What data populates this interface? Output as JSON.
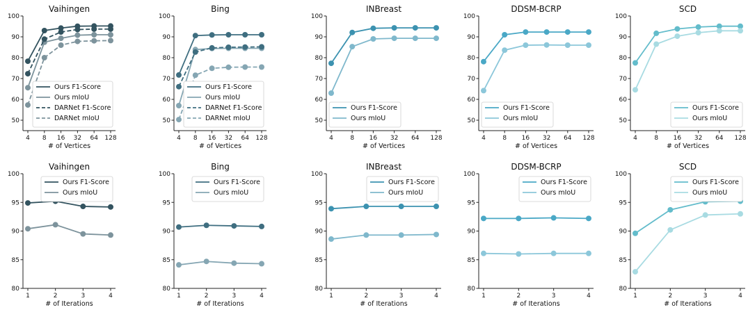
{
  "chart_data": [
    {
      "id": "v-top",
      "type": "line",
      "title": "Vaihingen",
      "xlabel": "# of Vertices",
      "x": [
        "4",
        "8",
        "16",
        "32",
        "64",
        "128"
      ],
      "ylim": [
        45,
        100
      ],
      "yticks": [
        50,
        60,
        70,
        80,
        90,
        100
      ],
      "legend": "lower-right",
      "series": [
        {
          "name": "Ours F1-Score",
          "values": [
            78.3,
            93.0,
            94.2,
            95.1,
            95.2,
            95.2
          ],
          "color": "#33535f",
          "dash": false
        },
        {
          "name": "Ours mIoU",
          "values": [
            65.6,
            87.4,
            89.3,
            90.8,
            91.0,
            91.0
          ],
          "color": "#7d939c",
          "dash": false
        },
        {
          "name": "DARNet F1-Score",
          "values": [
            72.3,
            88.9,
            92.3,
            93.5,
            93.7,
            93.7
          ],
          "color": "#33535f",
          "dash": true
        },
        {
          "name": "DARNet mIoU",
          "values": [
            57.3,
            80.0,
            86.0,
            87.8,
            88.1,
            88.2
          ],
          "color": "#7d939c",
          "dash": true
        }
      ]
    },
    {
      "id": "b-top",
      "type": "line",
      "title": "Bing",
      "xlabel": "# of Vertices",
      "x": [
        "4",
        "8",
        "16",
        "32",
        "64",
        "128"
      ],
      "ylim": [
        45,
        100
      ],
      "yticks": [
        50,
        60,
        70,
        80,
        90,
        100
      ],
      "legend": "lower-right",
      "series": [
        {
          "name": "Ours F1-Score",
          "values": [
            71.7,
            90.6,
            90.9,
            91.0,
            91.0,
            91.0
          ],
          "color": "#3f6e80",
          "dash": false
        },
        {
          "name": "Ours mIoU",
          "values": [
            57.0,
            83.9,
            84.4,
            84.5,
            84.5,
            84.5
          ],
          "color": "#85a6b3",
          "dash": false
        },
        {
          "name": "DARNet F1-Score",
          "values": [
            66.1,
            82.7,
            84.7,
            85.0,
            85.1,
            85.2
          ],
          "color": "#3f6e80",
          "dash": true
        },
        {
          "name": "DARNet mIoU",
          "values": [
            50.3,
            71.6,
            74.9,
            75.4,
            75.5,
            75.5
          ],
          "color": "#85a6b3",
          "dash": true
        }
      ]
    },
    {
      "id": "i-top",
      "type": "line",
      "title": "INBreast",
      "xlabel": "# of Vertices",
      "x": [
        "4",
        "8",
        "16",
        "32",
        "64",
        "128"
      ],
      "ylim": [
        45,
        100
      ],
      "yticks": [
        50,
        60,
        70,
        80,
        90,
        100
      ],
      "legend": "lower-left",
      "series": [
        {
          "name": "Ours F1-Score",
          "values": [
            77.3,
            92.1,
            94.1,
            94.3,
            94.3,
            94.3
          ],
          "color": "#3c92b0",
          "dash": false
        },
        {
          "name": "Ours mIoU",
          "values": [
            63.0,
            85.3,
            89.0,
            89.3,
            89.3,
            89.3
          ],
          "color": "#7fb8cc",
          "dash": false
        }
      ]
    },
    {
      "id": "d-top",
      "type": "line",
      "title": "DDSM-BCRP",
      "xlabel": "# of Vertices",
      "x": [
        "4",
        "8",
        "16",
        "32",
        "64",
        "128"
      ],
      "ylim": [
        45,
        100
      ],
      "yticks": [
        50,
        60,
        70,
        80,
        90,
        100
      ],
      "legend": "lower-left",
      "series": [
        {
          "name": "Ours F1-Score",
          "values": [
            78.1,
            91.0,
            92.3,
            92.3,
            92.3,
            92.3
          ],
          "color": "#4aa8c6",
          "dash": false
        },
        {
          "name": "Ours mIoU",
          "values": [
            64.2,
            83.6,
            86.0,
            86.1,
            86.0,
            86.0
          ],
          "color": "#8cc7da",
          "dash": false
        }
      ]
    },
    {
      "id": "s-top",
      "type": "line",
      "title": "SCD",
      "xlabel": "# of Vertices",
      "x": [
        "4",
        "8",
        "16",
        "32",
        "64",
        "128"
      ],
      "ylim": [
        45,
        100
      ],
      "yticks": [
        50,
        60,
        70,
        80,
        90,
        100
      ],
      "legend": "lower-right",
      "series": [
        {
          "name": "Ours F1-Score",
          "values": [
            77.5,
            91.7,
            93.8,
            94.7,
            95.1,
            95.1
          ],
          "color": "#63bccb",
          "dash": false
        },
        {
          "name": "Ours mIoU",
          "values": [
            64.6,
            86.5,
            90.3,
            92.0,
            92.9,
            92.9
          ],
          "color": "#a8dbe2",
          "dash": false
        }
      ]
    },
    {
      "id": "v-bot",
      "type": "line",
      "title": "Vaihingen",
      "xlabel": "# of Iterations",
      "x": [
        "1",
        "2",
        "3",
        "4"
      ],
      "ylim": [
        80,
        100
      ],
      "yticks": [
        80,
        85,
        90,
        95,
        100
      ],
      "legend": "upper-right",
      "series": [
        {
          "name": "Ours F1-Score",
          "values": [
            94.9,
            95.2,
            94.3,
            94.2
          ],
          "color": "#33535f",
          "dash": false
        },
        {
          "name": "Ours mIoU",
          "values": [
            90.4,
            91.1,
            89.5,
            89.3
          ],
          "color": "#7d939c",
          "dash": false
        }
      ]
    },
    {
      "id": "b-bot",
      "type": "line",
      "title": "Bing",
      "xlabel": "# of Iterations",
      "x": [
        "1",
        "2",
        "3",
        "4"
      ],
      "ylim": [
        80,
        100
      ],
      "yticks": [
        80,
        85,
        90,
        95,
        100
      ],
      "legend": "upper-right",
      "series": [
        {
          "name": "Ours F1-Score",
          "values": [
            90.7,
            91.0,
            90.9,
            90.8
          ],
          "color": "#3f6e80",
          "dash": false
        },
        {
          "name": "Ours mIoU",
          "values": [
            84.1,
            84.7,
            84.4,
            84.3
          ],
          "color": "#85a6b3",
          "dash": false
        }
      ]
    },
    {
      "id": "i-bot",
      "type": "line",
      "title": "INBreast",
      "xlabel": "# of Iterations",
      "x": [
        "1",
        "2",
        "3",
        "4"
      ],
      "ylim": [
        80,
        100
      ],
      "yticks": [
        80,
        85,
        90,
        95,
        100
      ],
      "legend": "upper-right",
      "series": [
        {
          "name": "Ours F1-Score",
          "values": [
            93.9,
            94.3,
            94.3,
            94.3
          ],
          "color": "#3c92b0",
          "dash": false
        },
        {
          "name": "Ours mIoU",
          "values": [
            88.6,
            89.3,
            89.3,
            89.4
          ],
          "color": "#7fb8cc",
          "dash": false
        }
      ]
    },
    {
      "id": "d-bot",
      "type": "line",
      "title": "DDSM-BCRP",
      "xlabel": "# of Iterations",
      "x": [
        "1",
        "2",
        "3",
        "4"
      ],
      "ylim": [
        80,
        100
      ],
      "yticks": [
        80,
        85,
        90,
        95,
        100
      ],
      "legend": "upper-right",
      "series": [
        {
          "name": "Ours F1-Score",
          "values": [
            92.2,
            92.2,
            92.3,
            92.2
          ],
          "color": "#4aa8c6",
          "dash": false
        },
        {
          "name": "Ours mIoU",
          "values": [
            86.1,
            86.0,
            86.1,
            86.1
          ],
          "color": "#8cc7da",
          "dash": false
        }
      ]
    },
    {
      "id": "s-bot",
      "type": "line",
      "title": "SCD",
      "xlabel": "# of Iterations",
      "x": [
        "1",
        "2",
        "3",
        "4"
      ],
      "ylim": [
        80,
        100
      ],
      "yticks": [
        80,
        85,
        90,
        95,
        100
      ],
      "legend": "upper-right",
      "series": [
        {
          "name": "Ours F1-Score",
          "values": [
            89.6,
            93.7,
            95.1,
            95.2
          ],
          "color": "#63bccb",
          "dash": false
        },
        {
          "name": "Ours mIoU",
          "values": [
            82.9,
            90.2,
            92.8,
            93.0
          ],
          "color": "#a8dbe2",
          "dash": false
        }
      ]
    }
  ]
}
